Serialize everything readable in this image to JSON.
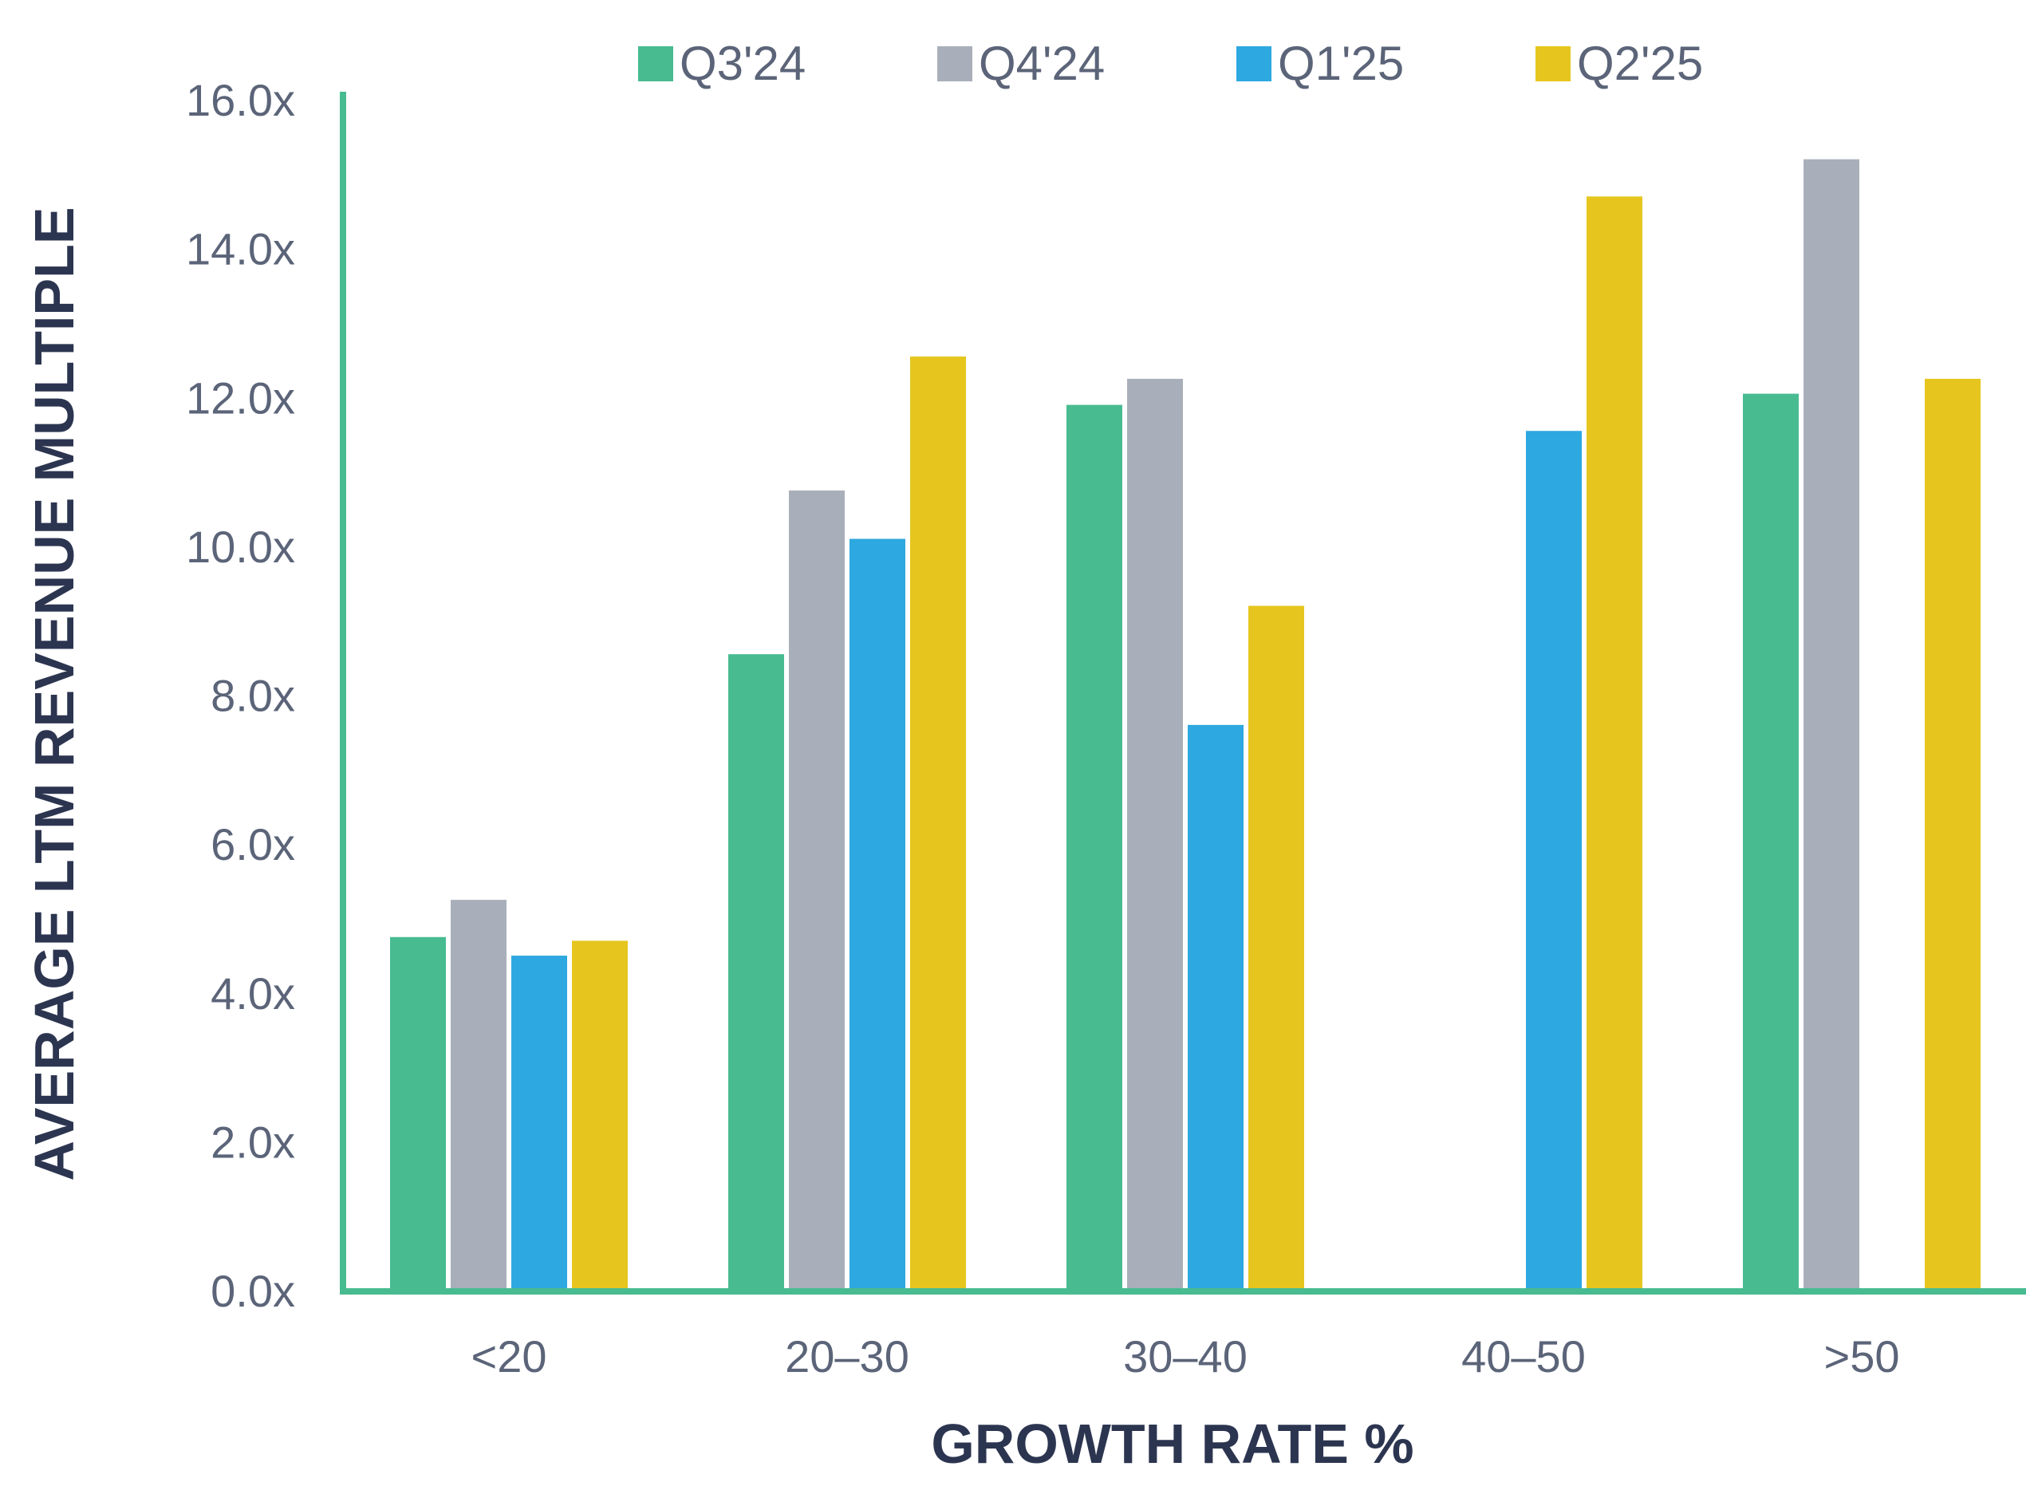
{
  "chart_data": {
    "type": "bar",
    "title": "",
    "xlabel": "GROWTH RATE %",
    "ylabel": "AVERAGE LTM REVENUE MULTIPLE",
    "ylim": [
      0,
      16
    ],
    "yticks": [
      "0.0x",
      "2.0x",
      "4.0x",
      "6.0x",
      "8.0x",
      "10.0x",
      "12.0x",
      "14.0x",
      "16.0x"
    ],
    "ytick_values": [
      0,
      2,
      4,
      6,
      8,
      10,
      12,
      14,
      16
    ],
    "categories": [
      "<20",
      "20–30",
      "30–40",
      "40–50",
      ">50"
    ],
    "series": [
      {
        "name": "Q3'24",
        "color": "#48bb91",
        "values": [
          4.75,
          8.55,
          11.9,
          0,
          12.05
        ]
      },
      {
        "name": "Q4'24",
        "color": "#a9afba",
        "values": [
          5.25,
          10.75,
          12.25,
          0,
          15.2
        ]
      },
      {
        "name": "Q1'25",
        "color": "#2ea8e0",
        "values": [
          4.5,
          10.1,
          7.6,
          11.55,
          0
        ]
      },
      {
        "name": "Q2'25",
        "color": "#e6c61e",
        "values": [
          4.7,
          12.55,
          9.2,
          14.7,
          12.25
        ]
      }
    ],
    "legend_position": "top",
    "grid": false,
    "axis_color": "#48bb91"
  }
}
